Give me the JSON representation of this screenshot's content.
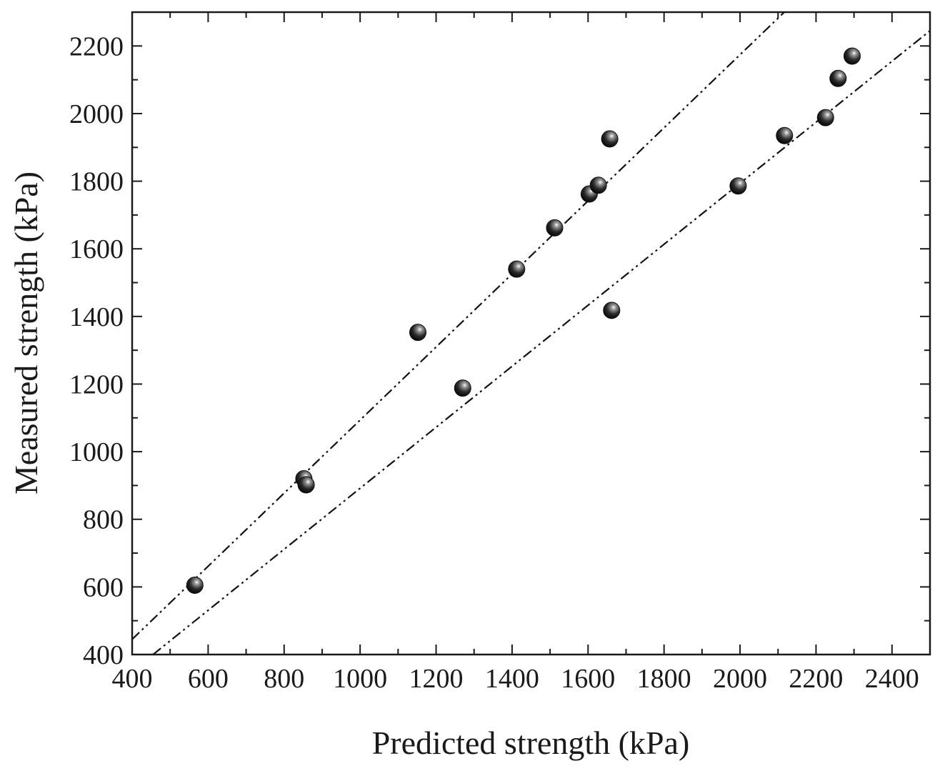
{
  "chart_data": {
    "type": "scatter",
    "title": "",
    "xlabel": "Predicted strength (kPa)",
    "ylabel": "Measured strength (kPa)",
    "xlim": [
      400,
      2500
    ],
    "ylim": [
      400,
      2300
    ],
    "x_ticks": [
      400,
      600,
      800,
      1000,
      1200,
      1400,
      1600,
      1800,
      2000,
      2200,
      2400
    ],
    "y_ticks": [
      400,
      600,
      800,
      1000,
      1200,
      1400,
      1600,
      1800,
      2000,
      2200
    ],
    "grid": false,
    "legend": "none",
    "points": [
      {
        "x": 565,
        "y": 605
      },
      {
        "x": 852,
        "y": 920
      },
      {
        "x": 858,
        "y": 902
      },
      {
        "x": 1152,
        "y": 1353
      },
      {
        "x": 1270,
        "y": 1188
      },
      {
        "x": 1412,
        "y": 1540
      },
      {
        "x": 1512,
        "y": 1662
      },
      {
        "x": 1603,
        "y": 1762
      },
      {
        "x": 1627,
        "y": 1788
      },
      {
        "x": 1657,
        "y": 1925
      },
      {
        "x": 1662,
        "y": 1418
      },
      {
        "x": 1995,
        "y": 1786
      },
      {
        "x": 2117,
        "y": 1935
      },
      {
        "x": 2225,
        "y": 1988
      },
      {
        "x": 2258,
        "y": 2104
      },
      {
        "x": 2295,
        "y": 2170
      }
    ],
    "reference_lines": [
      {
        "style": "dash-dot-dot",
        "x": [
          400,
          2135
        ],
        "y": [
          445,
          2320
        ]
      },
      {
        "style": "dash-dot-dot",
        "x": [
          455,
          2500
        ],
        "y": [
          400,
          2245
        ]
      }
    ],
    "colors": {
      "marker": "#111111",
      "line": "#111111",
      "axis": "#1a1a1a"
    }
  }
}
